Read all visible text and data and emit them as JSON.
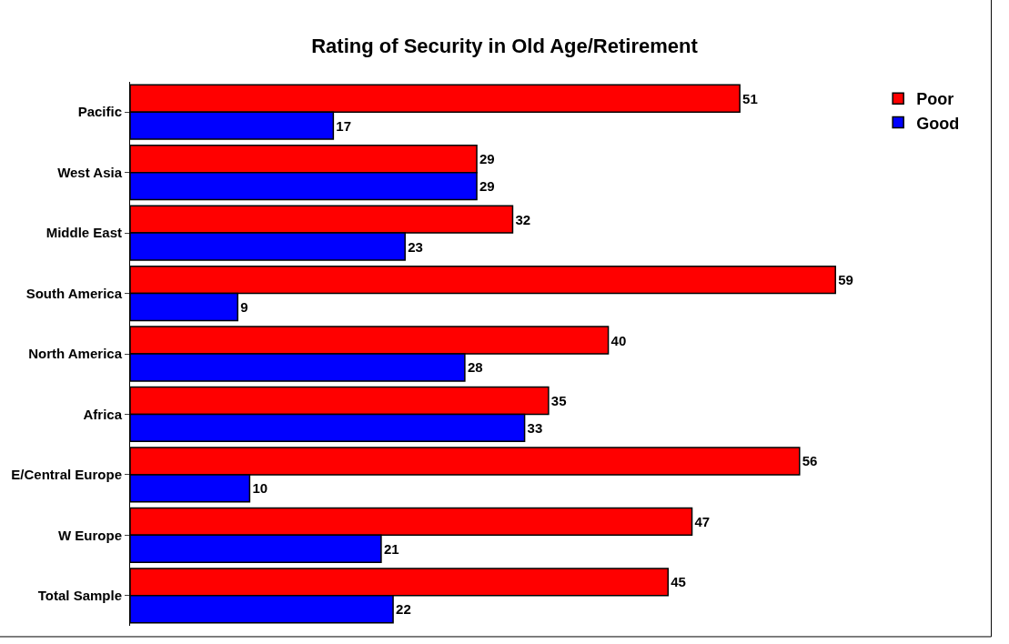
{
  "chart_data": {
    "type": "bar",
    "orientation": "horizontal",
    "title": "Rating of Security in Old Age/Retirement",
    "categories": [
      "Pacific",
      "West Asia",
      "Middle East",
      "South America",
      "North America",
      "Africa",
      "E/Central Europe",
      "W Europe",
      "Total Sample"
    ],
    "series": [
      {
        "name": "Poor",
        "color": "#ff0000",
        "values": [
          51,
          29,
          32,
          59,
          40,
          35,
          56,
          47,
          45
        ]
      },
      {
        "name": "Good",
        "color": "#0000ff",
        "values": [
          17,
          29,
          23,
          9,
          28,
          33,
          10,
          21,
          22
        ]
      }
    ],
    "data_labels": true,
    "legend": "top right",
    "tick_labels": "y"
  }
}
